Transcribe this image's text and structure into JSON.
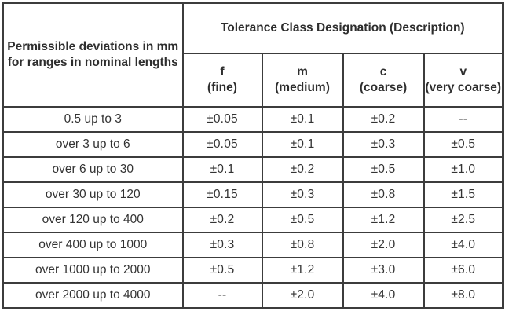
{
  "colors": {
    "grid": "#3c3c3c",
    "text": "#2e2e2e",
    "background": "#ffffff"
  },
  "table": {
    "row_header": "Permissible deviations in mm\nfor ranges in nominal lengths",
    "title": "Tolerance Class Designation (Description)",
    "classes": [
      {
        "symbol": "f",
        "desc": "(fine)"
      },
      {
        "symbol": "m",
        "desc": "(medium)"
      },
      {
        "symbol": "c",
        "desc": "(coarse)"
      },
      {
        "symbol": "v",
        "desc": "(very coarse)"
      }
    ],
    "rows": [
      {
        "range": "0.5 up to 3",
        "values": [
          "±0.05",
          "±0.1",
          "±0.2",
          "--"
        ]
      },
      {
        "range": "over 3 up to 6",
        "values": [
          "±0.05",
          "±0.1",
          "±0.3",
          "±0.5"
        ]
      },
      {
        "range": "over 6 up to 30",
        "values": [
          "±0.1",
          "±0.2",
          "±0.5",
          "±1.0"
        ]
      },
      {
        "range": "over 30 up to 120",
        "values": [
          "±0.15",
          "±0.3",
          "±0.8",
          "±1.5"
        ]
      },
      {
        "range": "over 120 up to 400",
        "values": [
          "±0.2",
          "±0.5",
          "±1.2",
          "±2.5"
        ]
      },
      {
        "range": "over 400 up to 1000",
        "values": [
          "±0.3",
          "±0.8",
          "±2.0",
          "±4.0"
        ]
      },
      {
        "range": "over 1000 up to 2000",
        "values": [
          "±0.5",
          "±1.2",
          "±3.0",
          "±6.0"
        ]
      },
      {
        "range": "over 2000 up to 4000",
        "values": [
          "--",
          "±2.0",
          "±4.0",
          "±8.0"
        ]
      }
    ]
  }
}
